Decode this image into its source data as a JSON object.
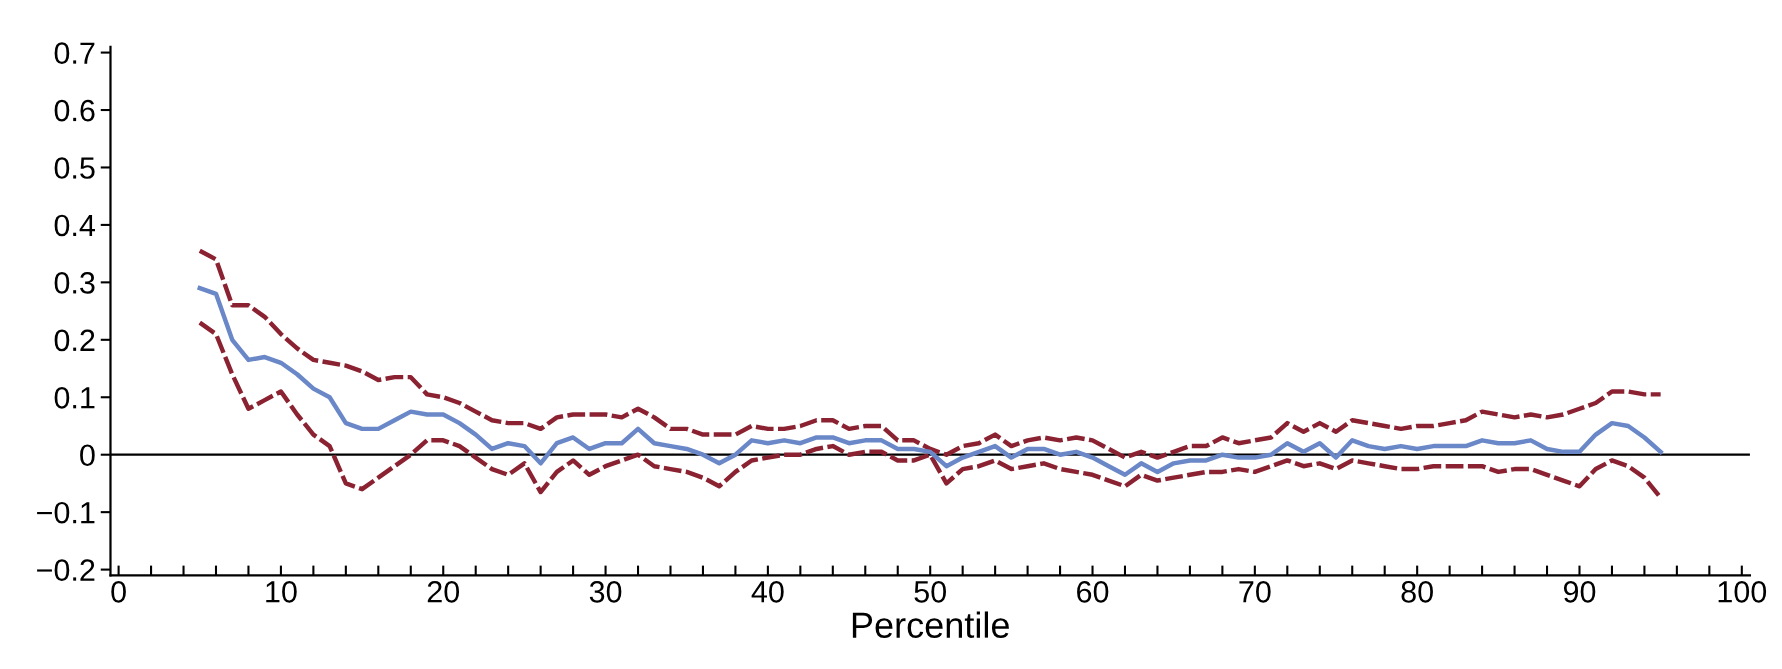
{
  "chart_data": {
    "type": "line",
    "xlabel": "Percentile",
    "x": [
      5,
      6,
      7,
      8,
      9,
      10,
      11,
      12,
      13,
      14,
      15,
      16,
      17,
      18,
      19,
      20,
      21,
      22,
      23,
      24,
      25,
      26,
      27,
      28,
      29,
      30,
      31,
      32,
      33,
      34,
      35,
      36,
      37,
      38,
      39,
      40,
      41,
      42,
      43,
      44,
      45,
      46,
      47,
      48,
      49,
      50,
      51,
      52,
      53,
      54,
      55,
      56,
      57,
      58,
      59,
      60,
      61,
      62,
      63,
      64,
      65,
      66,
      67,
      68,
      69,
      70,
      71,
      72,
      73,
      74,
      75,
      76,
      77,
      78,
      79,
      80,
      81,
      82,
      83,
      84,
      85,
      86,
      87,
      88,
      89,
      90,
      91,
      92,
      93,
      94,
      95
    ],
    "series": [
      {
        "color": "#8b2232",
        "line_style": "dashed",
        "values": [
          0.355,
          0.34,
          0.26,
          0.26,
          0.24,
          0.21,
          0.185,
          0.165,
          0.16,
          0.155,
          0.145,
          0.13,
          0.135,
          0.135,
          0.105,
          0.1,
          0.09,
          0.075,
          0.06,
          0.055,
          0.055,
          0.045,
          0.065,
          0.07,
          0.07,
          0.07,
          0.065,
          0.08,
          0.065,
          0.045,
          0.045,
          0.035,
          0.035,
          0.035,
          0.05,
          0.045,
          0.045,
          0.05,
          0.06,
          0.06,
          0.045,
          0.05,
          0.05,
          0.025,
          0.025,
          0.01,
          0.0,
          0.015,
          0.02,
          0.035,
          0.015,
          0.025,
          0.03,
          0.025,
          0.03,
          0.025,
          0.01,
          -0.005,
          0.005,
          -0.005,
          0.005,
          0.015,
          0.015,
          0.03,
          0.02,
          0.025,
          0.03,
          0.055,
          0.04,
          0.055,
          0.04,
          0.06,
          0.055,
          0.05,
          0.045,
          0.05,
          0.05,
          0.055,
          0.06,
          0.075,
          0.07,
          0.065,
          0.07,
          0.065,
          0.07,
          0.08,
          0.09,
          0.11,
          0.11,
          0.105,
          0.105
        ]
      },
      {
        "color": "#8b2232",
        "line_style": "dashed",
        "values": [
          0.23,
          0.21,
          0.14,
          0.08,
          0.095,
          0.11,
          0.07,
          0.035,
          0.015,
          -0.05,
          -0.06,
          -0.04,
          -0.02,
          0.0,
          0.025,
          0.025,
          0.015,
          -0.005,
          -0.025,
          -0.035,
          -0.015,
          -0.065,
          -0.03,
          -0.01,
          -0.035,
          -0.02,
          -0.01,
          0.0,
          -0.02,
          -0.025,
          -0.03,
          -0.04,
          -0.055,
          -0.03,
          -0.01,
          -0.005,
          0.0,
          0.0,
          0.01,
          0.015,
          0.0,
          0.005,
          0.005,
          -0.01,
          -0.01,
          0.0,
          -0.05,
          -0.025,
          -0.02,
          -0.01,
          -0.025,
          -0.02,
          -0.015,
          -0.025,
          -0.03,
          -0.035,
          -0.045,
          -0.055,
          -0.035,
          -0.045,
          -0.04,
          -0.035,
          -0.03,
          -0.03,
          -0.025,
          -0.03,
          -0.02,
          -0.01,
          -0.02,
          -0.015,
          -0.025,
          -0.01,
          -0.015,
          -0.02,
          -0.025,
          -0.025,
          -0.02,
          -0.02,
          -0.02,
          -0.02,
          -0.03,
          -0.025,
          -0.025,
          -0.035,
          -0.045,
          -0.055,
          -0.025,
          -0.01,
          -0.02,
          -0.04,
          -0.075
        ]
      },
      {
        "color": "#6a87c8",
        "line_style": "solid",
        "values": [
          0.29,
          0.28,
          0.2,
          0.165,
          0.17,
          0.16,
          0.14,
          0.115,
          0.1,
          0.055,
          0.045,
          0.045,
          0.06,
          0.075,
          0.07,
          0.07,
          0.055,
          0.035,
          0.01,
          0.02,
          0.015,
          -0.015,
          0.02,
          0.03,
          0.01,
          0.02,
          0.02,
          0.045,
          0.02,
          0.015,
          0.01,
          0.0,
          -0.015,
          0.0,
          0.025,
          0.02,
          0.025,
          0.02,
          0.03,
          0.03,
          0.02,
          0.025,
          0.025,
          0.01,
          0.01,
          0.005,
          -0.02,
          -0.005,
          0.005,
          0.015,
          -0.005,
          0.01,
          0.01,
          0.0,
          0.005,
          -0.005,
          -0.02,
          -0.035,
          -0.015,
          -0.03,
          -0.015,
          -0.01,
          -0.01,
          0.0,
          -0.005,
          -0.005,
          0.0,
          0.02,
          0.005,
          0.02,
          -0.005,
          0.025,
          0.015,
          0.01,
          0.015,
          0.01,
          0.015,
          0.015,
          0.015,
          0.025,
          0.02,
          0.02,
          0.025,
          0.01,
          0.005,
          0.005,
          0.035,
          0.055,
          0.05,
          0.03,
          0.005
        ]
      }
    ],
    "ref_lines": [
      {
        "axis": "y",
        "value": 0,
        "color": "#000000",
        "line_style": "solid"
      }
    ],
    "xlim": [
      -0.5,
      100.5
    ],
    "ylim": [
      -0.21,
      0.71
    ],
    "xticks": [
      0,
      {
        "value": 2,
        "label": null
      },
      {
        "value": 4,
        "label": null
      },
      {
        "value": 6,
        "label": null
      },
      {
        "value": 8,
        "label": null
      },
      10,
      {
        "value": 12,
        "label": null
      },
      {
        "value": 14,
        "label": null
      },
      {
        "value": 16,
        "label": null
      },
      {
        "value": 18,
        "label": null
      },
      20,
      {
        "value": 22,
        "label": null
      },
      {
        "value": 24,
        "label": null
      },
      {
        "value": 26,
        "label": null
      },
      {
        "value": 28,
        "label": null
      },
      30,
      {
        "value": 32,
        "label": null
      },
      {
        "value": 34,
        "label": null
      },
      {
        "value": 36,
        "label": null
      },
      {
        "value": 38,
        "label": null
      },
      40,
      {
        "value": 42,
        "label": null
      },
      {
        "value": 44,
        "label": null
      },
      {
        "value": 46,
        "label": null
      },
      {
        "value": 48,
        "label": null
      },
      50,
      {
        "value": 52,
        "label": null
      },
      {
        "value": 54,
        "label": null
      },
      {
        "value": 56,
        "label": null
      },
      {
        "value": 58,
        "label": null
      },
      60,
      {
        "value": 62,
        "label": null
      },
      {
        "value": 64,
        "label": null
      },
      {
        "value": 66,
        "label": null
      },
      {
        "value": 68,
        "label": null
      },
      70,
      {
        "value": 72,
        "label": null
      },
      {
        "value": 74,
        "label": null
      },
      {
        "value": 76,
        "label": null
      },
      {
        "value": 78,
        "label": null
      },
      80,
      {
        "value": 82,
        "label": null
      },
      {
        "value": 84,
        "label": null
      },
      {
        "value": 86,
        "label": null
      },
      {
        "value": 88,
        "label": null
      },
      90,
      {
        "value": 92,
        "label": null
      },
      {
        "value": 94,
        "label": null
      },
      {
        "value": 96,
        "label": null
      },
      {
        "value": 98,
        "label": null
      },
      100
    ],
    "yticks": [
      {
        "value": -0.2,
        "label": "−0.2"
      },
      {
        "value": -0.1,
        "label": "−0.1"
      },
      0,
      0.1,
      0.2,
      0.3,
      0.4,
      0.5,
      0.6,
      0.7
    ],
    "grid": false,
    "legend": false,
    "marker": "none"
  }
}
